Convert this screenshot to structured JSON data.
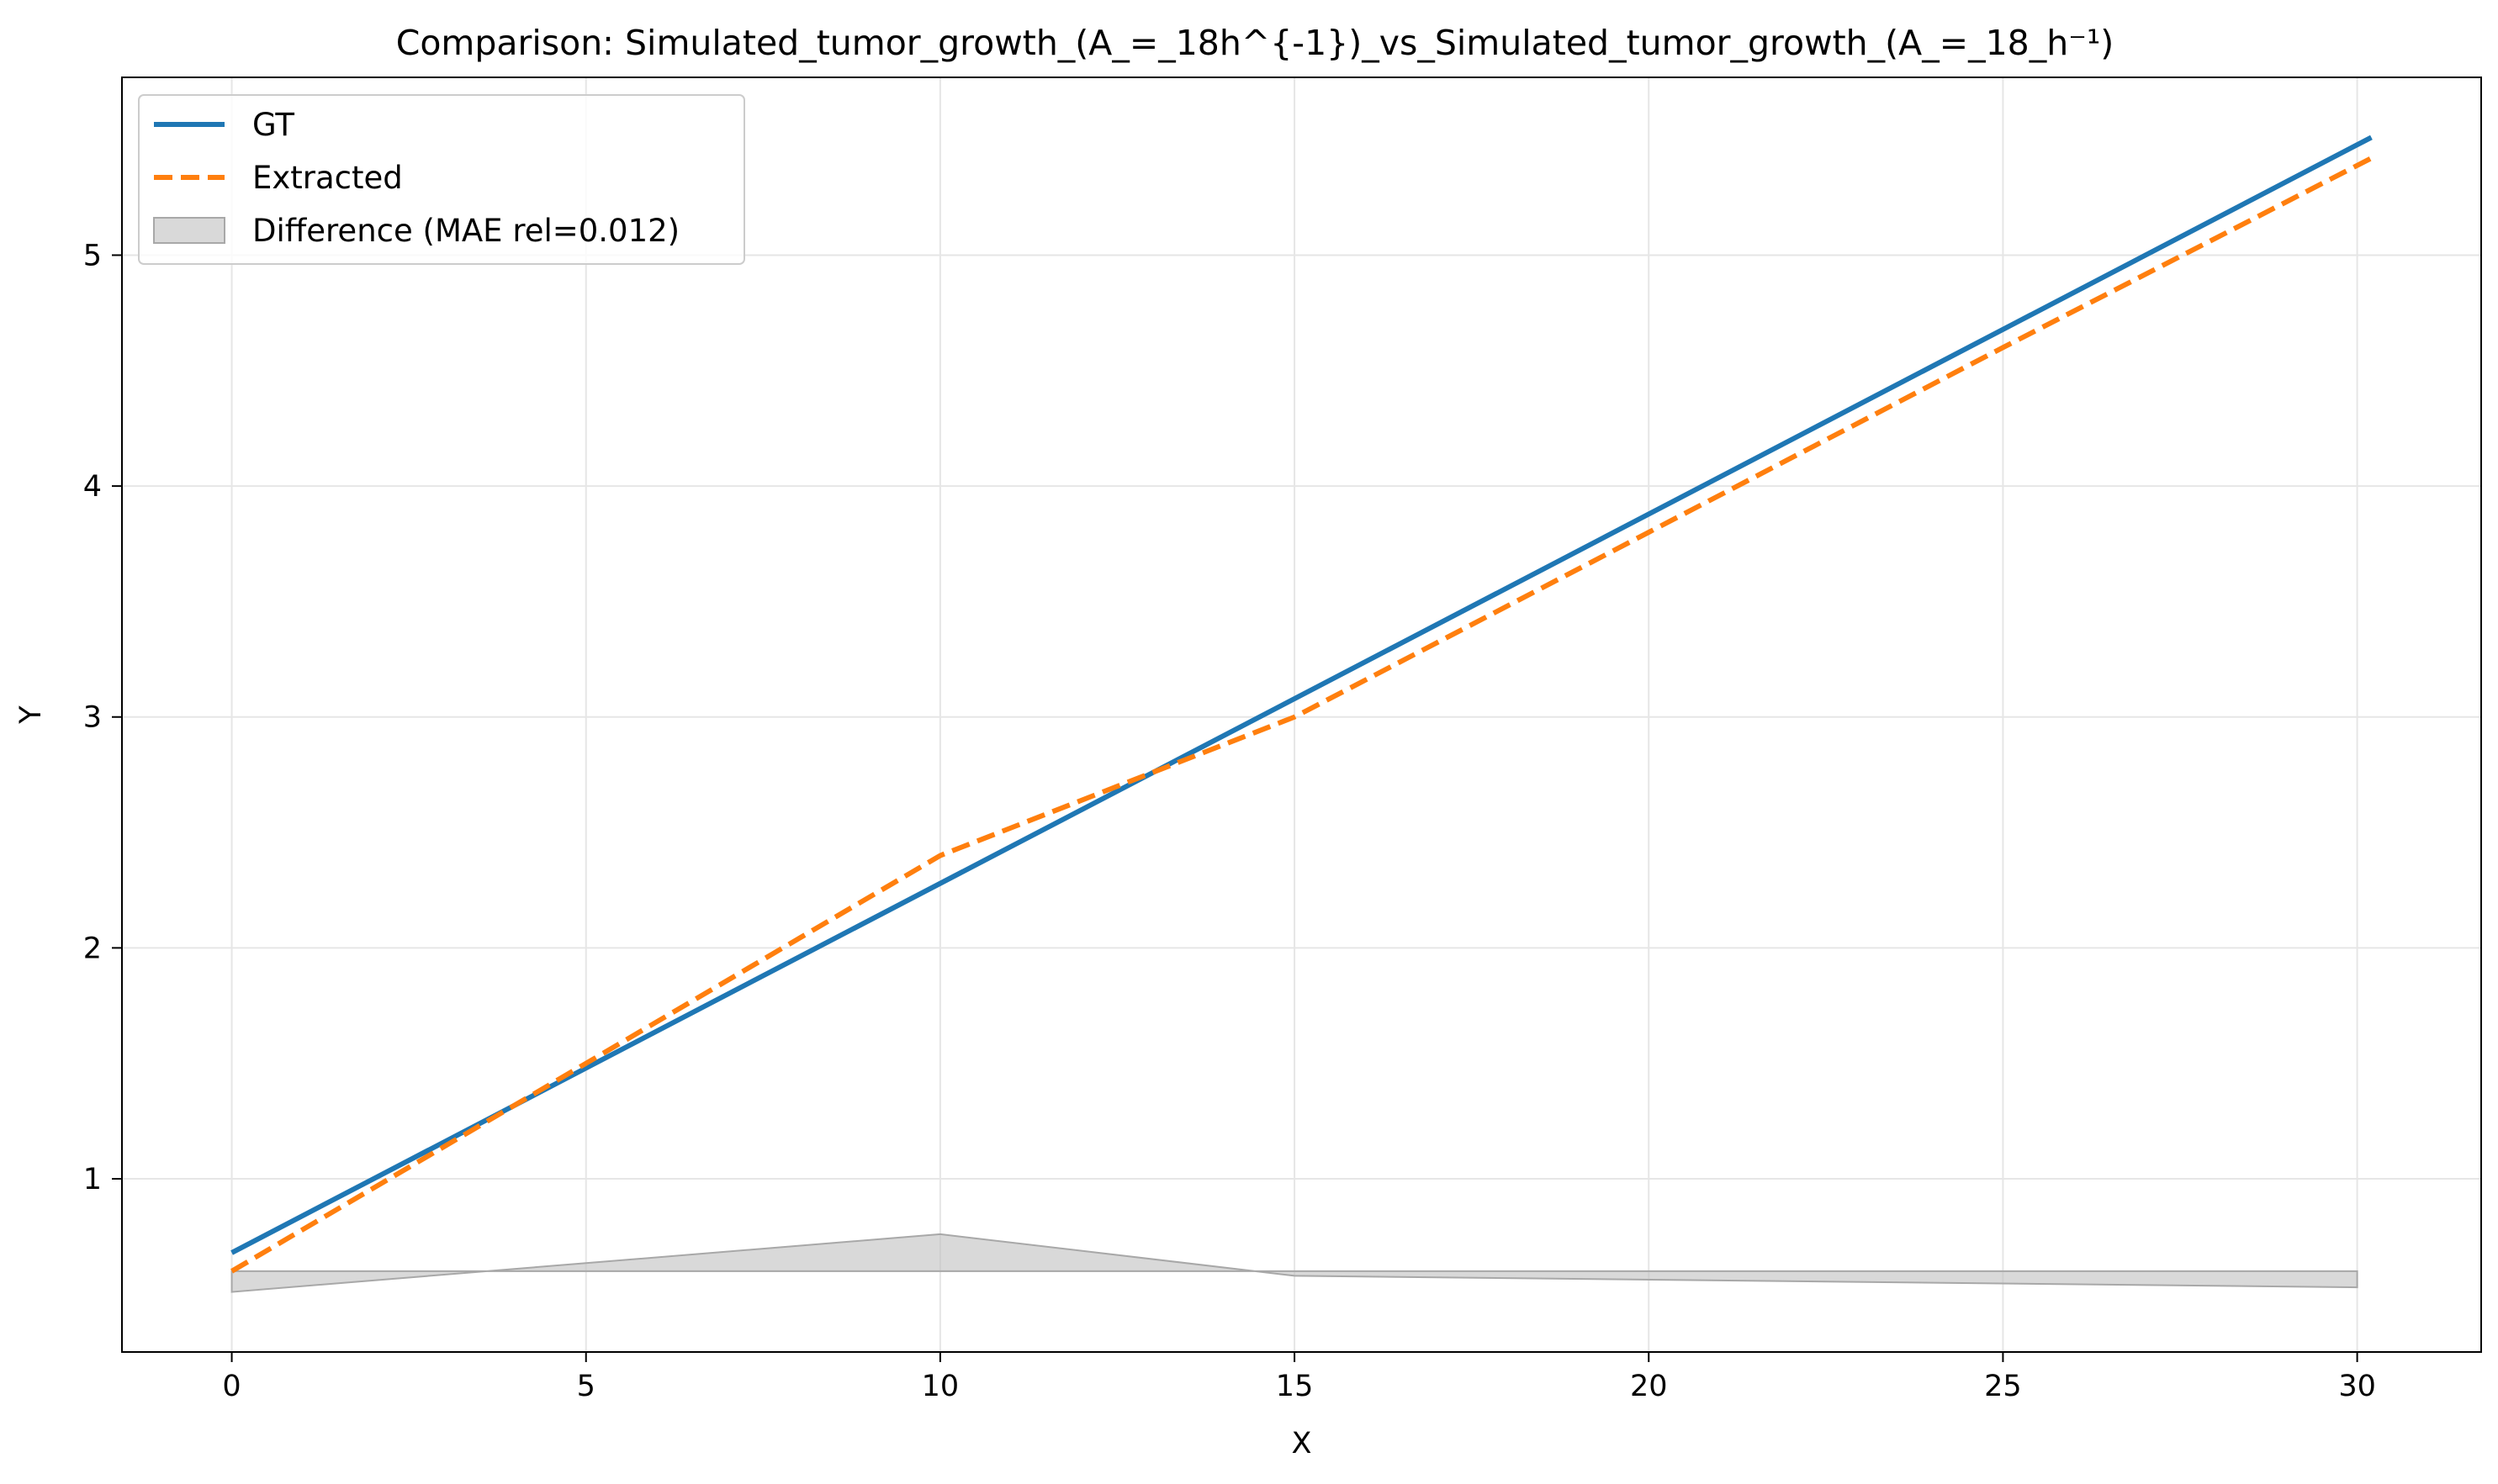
{
  "chart_data": {
    "type": "line",
    "title": "Comparison: Simulated_tumor_growth_(A_=_18h^{-1})_vs_Simulated_tumor_growth_(A_=_18_h⁻¹)",
    "xlabel": "X",
    "ylabel": "Y",
    "xlim": [
      -1.55,
      31.75
    ],
    "ylim": [
      0.25,
      5.77
    ],
    "xticks": [
      0,
      5,
      10,
      15,
      20,
      25,
      30
    ],
    "yticks": [
      1,
      2,
      3,
      4,
      5
    ],
    "grid": true,
    "legend_position": "top-left",
    "series": [
      {
        "name": "GT",
        "style": "solid",
        "color": "#1f77b4",
        "x": [
          0,
          30.2
        ],
        "y": [
          0.68,
          5.51
        ]
      },
      {
        "name": "Extracted",
        "style": "dashed",
        "color": "#ff7f0e",
        "x": [
          0,
          5,
          10,
          15,
          20,
          25,
          30.2
        ],
        "y": [
          0.6,
          1.5,
          2.4,
          3.0,
          3.8,
          4.6,
          5.42
        ]
      }
    ],
    "difference_band": {
      "name": "Difference (MAE rel=0.012)",
      "color": "#bfbfbf",
      "baseline": 0.6,
      "x": [
        0,
        10,
        15,
        30
      ],
      "y": [
        0.51,
        0.76,
        0.58,
        0.53
      ]
    }
  }
}
